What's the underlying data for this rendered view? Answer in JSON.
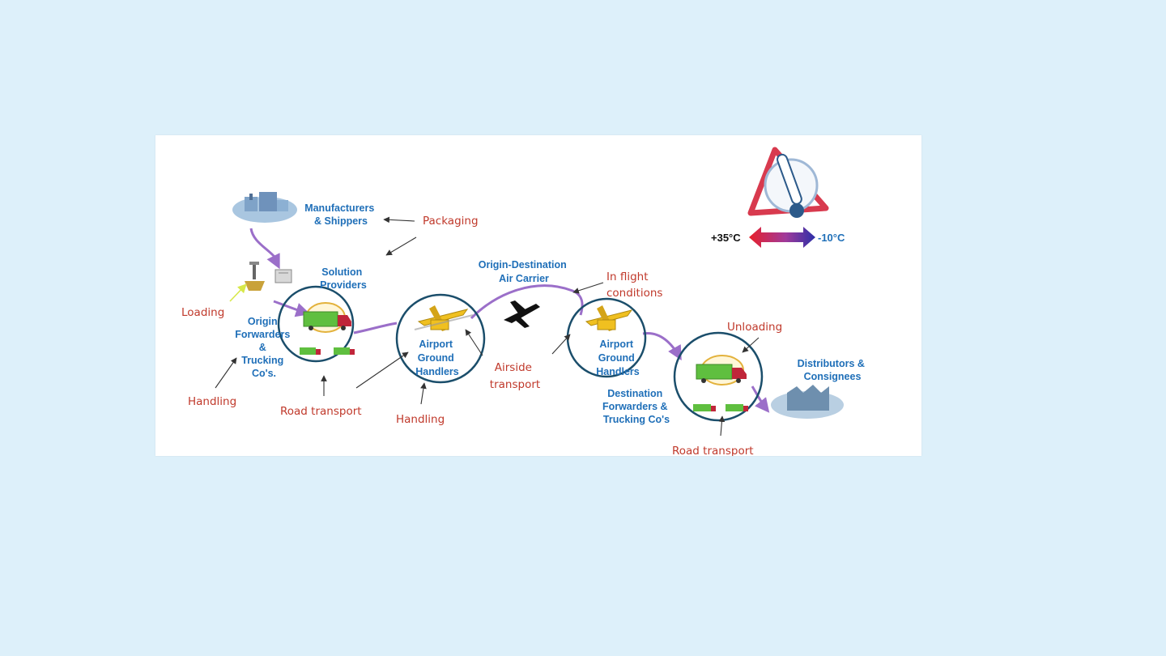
{
  "labels": {
    "manufacturers": [
      "Manufacturers",
      "& Shippers"
    ],
    "solution_providers": [
      "Solution",
      "Providers"
    ],
    "origin_forwarders": [
      "Origin",
      "Forwarders",
      "&",
      "Trucking",
      "Co's."
    ],
    "airport_handlers_1": [
      "Airport",
      "Ground",
      "Handlers"
    ],
    "airport_handlers_2": [
      "Airport",
      "Ground",
      "Handlers"
    ],
    "air_carrier": [
      "Origin-Destination",
      "Air Carrier"
    ],
    "destination_forwarders": [
      "Destination",
      "Forwarders &",
      "Trucking Co's"
    ],
    "distributors": [
      "Distributors &",
      "Consignees"
    ]
  },
  "activities": {
    "packaging": "Packaging",
    "loading": "Loading",
    "handling_1": "Handling",
    "road_transport_1": "Road transport",
    "handling_2": "Handling",
    "airside_transport": [
      "Airside",
      "transport"
    ],
    "in_flight": [
      "In flight",
      "conditions"
    ],
    "unloading": "Unloading",
    "road_transport_2": "Road transport"
  },
  "temperature": {
    "high": "+35°C",
    "low": "-10°C",
    "icon": "thermometer-warning-icon"
  },
  "colors": {
    "circle": "#1b4e6b",
    "flow_arrow": "#9b6fc9",
    "actor_text": "#1f6fb8",
    "activity_text": "#c0392b"
  }
}
